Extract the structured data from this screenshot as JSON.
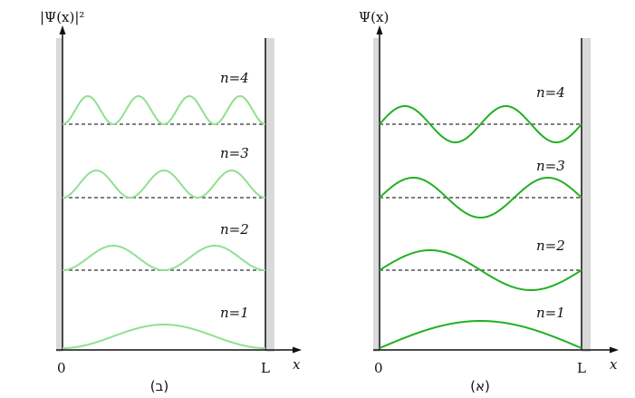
{
  "colors": {
    "wall": "#d9d9d9",
    "axis": "#111111",
    "dashed": "#555555",
    "left_curve": "#90e090",
    "right_curve": "#22b022"
  },
  "panels": {
    "left": {
      "y_axis_label": "|Ψ(x)|²",
      "x_axis_label": "x",
      "x_start": "0",
      "x_end": "L",
      "caption": "(ב)",
      "levels": [
        {
          "label": "n=1",
          "n": 1
        },
        {
          "label": "n=2",
          "n": 2
        },
        {
          "label": "n=3",
          "n": 3
        },
        {
          "label": "n=4",
          "n": 4
        }
      ]
    },
    "right": {
      "y_axis_label": "Ψ(x)",
      "x_axis_label": "x",
      "x_start": "0",
      "x_end": "L",
      "caption": "(א)",
      "levels": [
        {
          "label": "n=1",
          "n": 1
        },
        {
          "label": "n=2",
          "n": 2
        },
        {
          "label": "n=3",
          "n": 3
        },
        {
          "label": "n=4",
          "n": 4
        }
      ]
    }
  }
}
